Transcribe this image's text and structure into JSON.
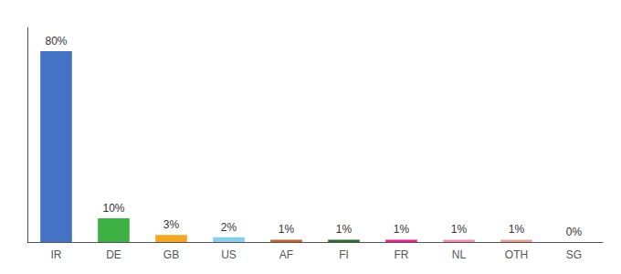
{
  "chart_data": {
    "type": "bar",
    "categories": [
      "IR",
      "DE",
      "GB",
      "US",
      "AF",
      "FI",
      "FR",
      "NL",
      "OTH",
      "SG"
    ],
    "values": [
      80,
      10,
      3,
      2,
      1,
      1,
      1,
      1,
      1,
      0
    ],
    "value_labels": [
      "80%",
      "10%",
      "3%",
      "2%",
      "1%",
      "1%",
      "1%",
      "1%",
      "1%",
      "0%"
    ],
    "colors": [
      "#4472c4",
      "#3cb043",
      "#f5a623",
      "#87ceeb",
      "#c0622b",
      "#2d6a2d",
      "#e91e8c",
      "#f48fb1",
      "#e8a090",
      "#dddddd"
    ],
    "ylim": [
      0,
      90
    ],
    "grid": false,
    "data_labels": true,
    "tick_labels": "x"
  }
}
